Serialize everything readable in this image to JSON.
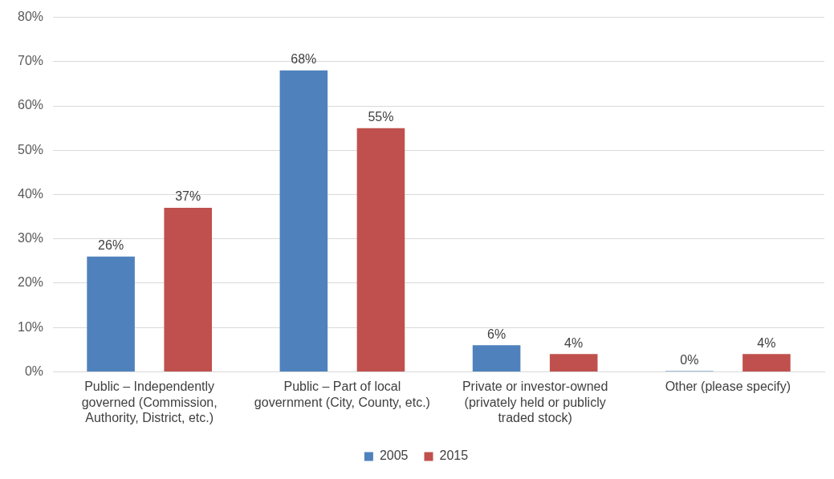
{
  "chart_data": {
    "type": "bar",
    "categories": [
      "Public – Independently governed (Commission, Authority, District, etc.)",
      "Public – Part of local government (City, County, etc.)",
      "Private or investor-owned (privately held or publicly traded stock)",
      "Other (please specify)"
    ],
    "series": [
      {
        "name": "2005",
        "color": "#4f81bd",
        "values": [
          26,
          68,
          6,
          0
        ],
        "value_labels": [
          "26%",
          "68%",
          "6%",
          "0%"
        ]
      },
      {
        "name": "2015",
        "color": "#c0504d",
        "values": [
          37,
          55,
          4,
          4
        ],
        "value_labels": [
          "37%",
          "55%",
          "4%",
          "4%"
        ]
      }
    ],
    "ylim": [
      0,
      80
    ],
    "yticks": [
      {
        "value": 0,
        "label": "0%"
      },
      {
        "value": 10,
        "label": "10%"
      },
      {
        "value": 20,
        "label": "20%"
      },
      {
        "value": 30,
        "label": "30%"
      },
      {
        "value": 40,
        "label": "40%"
      },
      {
        "value": 50,
        "label": "50%"
      },
      {
        "value": 60,
        "label": "60%"
      },
      {
        "value": 70,
        "label": "70%"
      },
      {
        "value": 80,
        "label": "80%"
      }
    ],
    "grid": "y",
    "legend": "bottom"
  }
}
